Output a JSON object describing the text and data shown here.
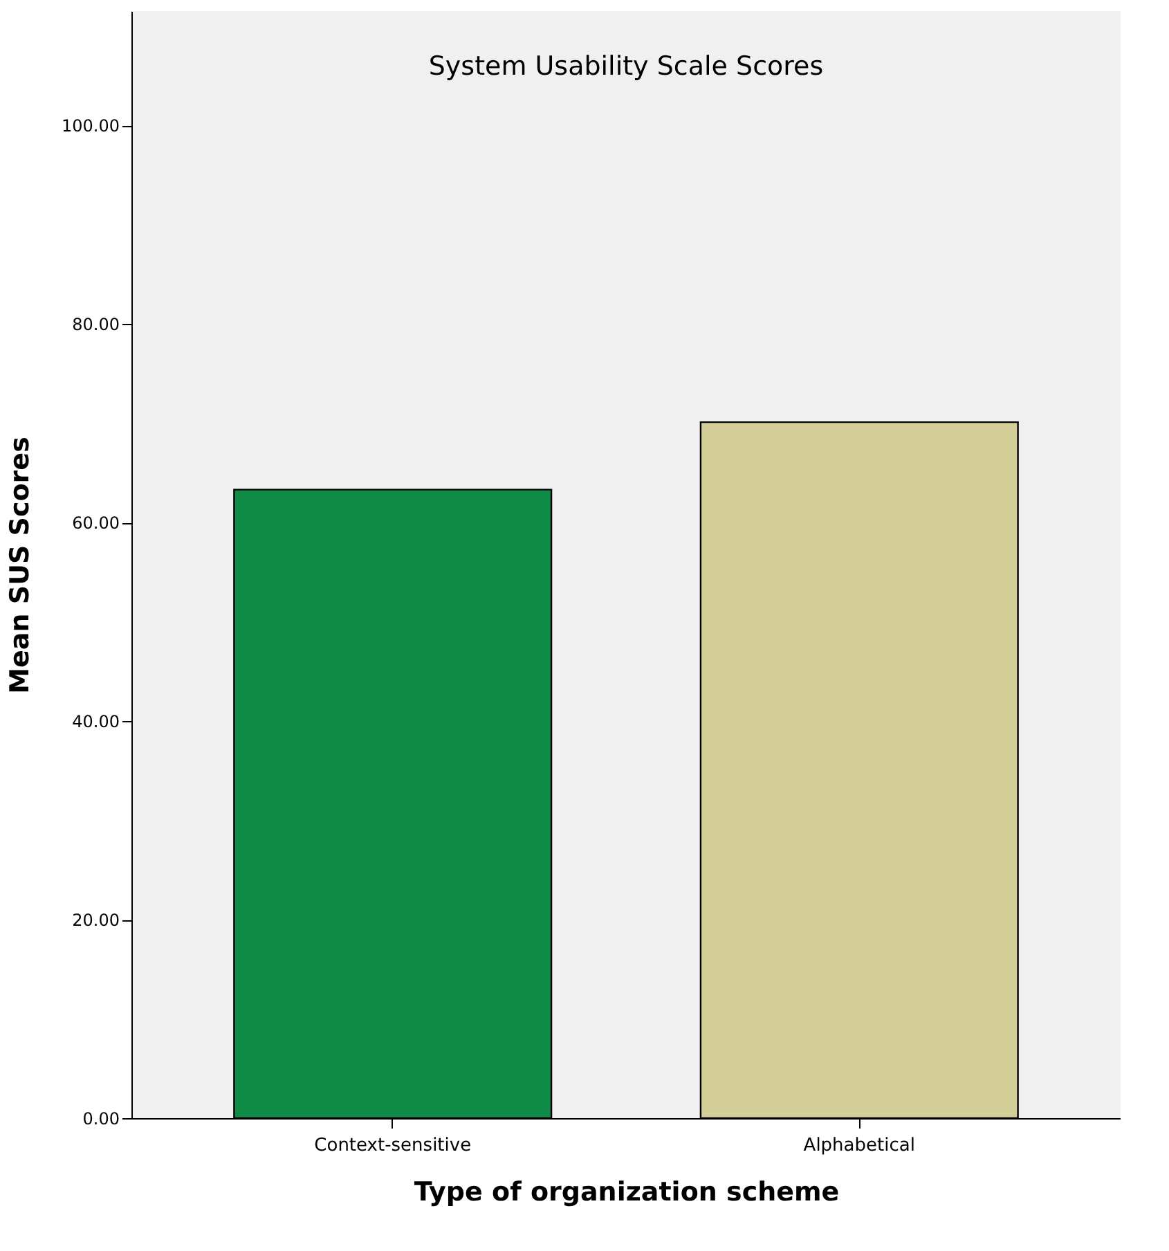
{
  "chart_data": {
    "type": "bar",
    "title": "System Usability Scale Scores",
    "xlabel": "Type of organization scheme",
    "ylabel": "Mean SUS Scores",
    "categories": [
      "Context-sensitive",
      "Alphabetical"
    ],
    "values": [
      63.3,
      70.1
    ],
    "colors": [
      "#118c48",
      "#d4cf98"
    ],
    "ylim": [
      0,
      111.5
    ],
    "yticks": [
      {
        "value": 0,
        "label": "0.00"
      },
      {
        "value": 20,
        "label": "20.00"
      },
      {
        "value": 40,
        "label": "40.00"
      },
      {
        "value": 60,
        "label": "60.00"
      },
      {
        "value": 80,
        "label": "80.00"
      },
      {
        "value": 100,
        "label": "100.00"
      }
    ]
  }
}
